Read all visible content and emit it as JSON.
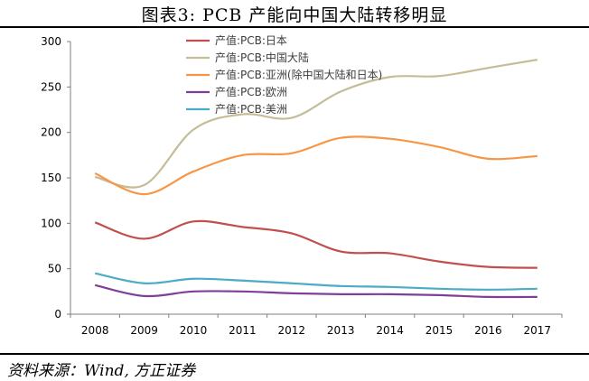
{
  "figure": {
    "title": "图表3:  PCB 产能向中国大陆转移明显",
    "source": "资料来源：Wind, 方正证券"
  },
  "chart_data": {
    "type": "line",
    "x": [
      2008,
      2009,
      2010,
      2011,
      2012,
      2013,
      2014,
      2015,
      2016,
      2017
    ],
    "ylim": [
      0,
      300
    ],
    "yticks": [
      0,
      50,
      100,
      150,
      200,
      250,
      300
    ],
    "grid": false,
    "legend_position": "top-center",
    "series": [
      {
        "name": "产值:PCB:日本",
        "color": "#c0504d",
        "values": [
          101,
          83,
          102,
          96,
          89,
          69,
          67,
          58,
          52,
          51
        ]
      },
      {
        "name": "产值:PCB:中国大陆",
        "color": "#c4bd97",
        "values": [
          151,
          142,
          203,
          220,
          216,
          245,
          261,
          262,
          271,
          280
        ]
      },
      {
        "name": "产值:PCB:亚洲(除中国大陆和日本)",
        "color": "#f79646",
        "values": [
          155,
          132,
          157,
          175,
          177,
          194,
          193,
          184,
          171,
          174
        ]
      },
      {
        "name": "产值:PCB:欧洲",
        "color": "#7f3f98",
        "values": [
          32,
          20,
          25,
          25,
          23,
          22,
          22,
          21,
          19,
          19
        ]
      },
      {
        "name": "产值:PCB:美洲",
        "color": "#4bacc6",
        "values": [
          45,
          34,
          39,
          37,
          34,
          31,
          30,
          28,
          27,
          28
        ]
      }
    ]
  }
}
